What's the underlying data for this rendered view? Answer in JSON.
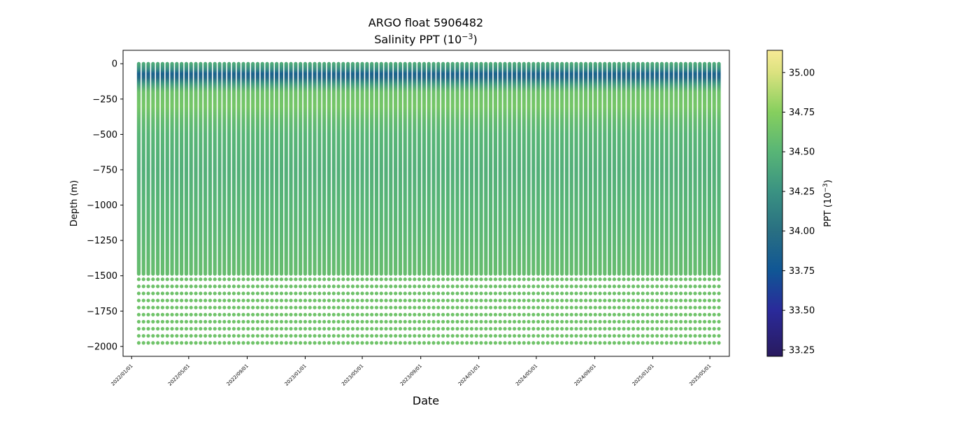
{
  "chart_data": {
    "type": "scatter",
    "title": "ARGO float 5906482",
    "subtitle_base": "Salinity PPT (10",
    "subtitle_exp": "−3",
    "subtitle_end": ")",
    "xlabel": "Date",
    "ylabel": "Depth (m)",
    "ylim": [
      -2070,
      95
    ],
    "xlim": [
      "2021-12-14",
      "2025-06-11"
    ],
    "grid": false,
    "x_ticks": [
      "2022/01/01",
      "2022/05/01",
      "2022/09/01",
      "2023/01/01",
      "2023/05/01",
      "2023/09/01",
      "2024/01/01",
      "2024/05/01",
      "2024/09/01",
      "2025/01/01",
      "2025/05/01"
    ],
    "y_ticks": [
      0,
      -250,
      -500,
      -750,
      -1000,
      -1250,
      -1500,
      -1750,
      -2000
    ],
    "y_tick_labels": [
      "0",
      "−250",
      "−500",
      "−750",
      "−1000",
      "−1250",
      "−1500",
      "−1750",
      "−2000"
    ],
    "colorbar": {
      "label_base": "PPT (10",
      "label_exp": "−3",
      "label_end": ")",
      "range": [
        33.21,
        35.14
      ],
      "ticks": [
        33.25,
        33.5,
        33.75,
        34.0,
        34.25,
        34.5,
        34.75,
        35.0
      ],
      "tick_labels": [
        "33.25",
        "33.50",
        "33.75",
        "34.00",
        "34.25",
        "34.50",
        "34.75",
        "35.00"
      ],
      "colormap": [
        [
          33.21,
          "#291a5e"
        ],
        [
          33.5,
          "#2a2a9a"
        ],
        [
          33.75,
          "#105695"
        ],
        [
          34.0,
          "#296f82"
        ],
        [
          34.25,
          "#3a9282"
        ],
        [
          34.5,
          "#58b576"
        ],
        [
          34.75,
          "#86cf5e"
        ],
        [
          35.0,
          "#dbe27f"
        ],
        [
          35.14,
          "#f8ea96"
        ]
      ]
    },
    "profile_dates": [
      "2022-01-16",
      "2022-01-26",
      "2022-02-05",
      "2022-02-15",
      "2022-02-25",
      "2022-03-07",
      "2022-03-17",
      "2022-03-27",
      "2022-04-06",
      "2022-04-16",
      "2022-04-26",
      "2022-05-06",
      "2022-05-16",
      "2022-05-26",
      "2022-06-05",
      "2022-06-15",
      "2022-06-25",
      "2022-07-05",
      "2022-07-15",
      "2022-07-25",
      "2022-08-04",
      "2022-08-14",
      "2022-08-24",
      "2022-09-03",
      "2022-09-13",
      "2022-09-23",
      "2022-10-03",
      "2022-10-13",
      "2022-10-23",
      "2022-11-02",
      "2022-11-12",
      "2022-11-22",
      "2022-12-02",
      "2022-12-12",
      "2022-12-22",
      "2023-01-01",
      "2023-01-11",
      "2023-01-21",
      "2023-01-31",
      "2023-02-10",
      "2023-02-20",
      "2023-03-02",
      "2023-03-12",
      "2023-03-22",
      "2023-04-01",
      "2023-04-11",
      "2023-04-21",
      "2023-05-01",
      "2023-05-11",
      "2023-05-21",
      "2023-05-31",
      "2023-06-10",
      "2023-06-20",
      "2023-06-30",
      "2023-07-10",
      "2023-07-20",
      "2023-07-30",
      "2023-08-09",
      "2023-08-19",
      "2023-08-29",
      "2023-09-08",
      "2023-09-18",
      "2023-09-28",
      "2023-10-08",
      "2023-10-18",
      "2023-10-28",
      "2023-11-07",
      "2023-11-17",
      "2023-11-27",
      "2023-12-07",
      "2023-12-17",
      "2023-12-27",
      "2024-01-06",
      "2024-01-16",
      "2024-01-26",
      "2024-02-05",
      "2024-02-15",
      "2024-02-25",
      "2024-03-06",
      "2024-03-16",
      "2024-03-26",
      "2024-04-05",
      "2024-04-15",
      "2024-04-25",
      "2024-05-05",
      "2024-05-15",
      "2024-05-25",
      "2024-06-04",
      "2024-06-14",
      "2024-06-24",
      "2024-07-04",
      "2024-07-14",
      "2024-07-24",
      "2024-08-03",
      "2024-08-13",
      "2024-08-23",
      "2024-09-02",
      "2024-09-12",
      "2024-09-22",
      "2024-10-02",
      "2024-10-12",
      "2024-10-22",
      "2024-11-01",
      "2024-11-11",
      "2024-11-21",
      "2024-12-01",
      "2024-12-11",
      "2024-12-21",
      "2024-12-31",
      "2025-01-10",
      "2025-01-20",
      "2025-01-30",
      "2025-02-09",
      "2025-02-19",
      "2025-03-01",
      "2025-03-11",
      "2025-03-21",
      "2025-03-31",
      "2025-04-10",
      "2025-04-20",
      "2025-04-30",
      "2025-05-10",
      "2025-05-20"
    ],
    "mean_profile": {
      "depth": [
        0,
        -40,
        -70,
        -100,
        -140,
        -200,
        -300,
        -400,
        -500,
        -750,
        -1000,
        -1250,
        -1500
      ],
      "salinity": [
        34.42,
        34.2,
        33.85,
        33.95,
        34.3,
        34.62,
        34.66,
        34.56,
        34.5,
        34.46,
        34.5,
        34.53,
        34.58
      ]
    },
    "deep_levels": {
      "depth": [
        -1525,
        -1575,
        -1625,
        -1675,
        -1725,
        -1775,
        -1825,
        -1875,
        -1925,
        -1975
      ],
      "salinity": [
        34.62,
        34.62,
        34.62,
        34.63,
        34.63,
        34.63,
        34.63,
        34.63,
        34.63,
        34.63
      ]
    }
  }
}
